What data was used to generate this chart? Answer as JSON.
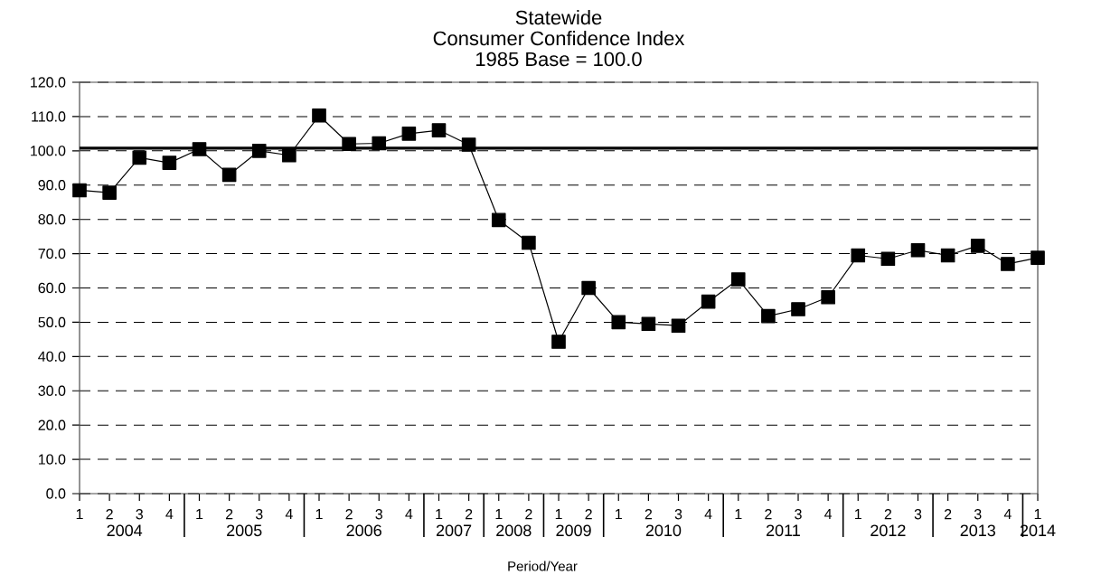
{
  "chart_data": {
    "type": "line",
    "title": "Statewide",
    "subtitle": "Consumer Confidence Index",
    "xlabel": "Period/Year",
    "annotations": [
      "1985 Base = 100.0",
      "2004",
      "2005",
      "2006",
      "2007",
      "2008",
      "2009",
      "2010",
      "2011",
      "2012",
      "2013",
      "2014"
    ],
    "categories": [
      "1",
      "2",
      "3",
      "4",
      "1",
      "2",
      "3",
      "4",
      "1",
      "2",
      "3",
      "4",
      "1",
      "2",
      "1",
      "2",
      "1",
      "2",
      "1",
      "2",
      "3",
      "4",
      "1",
      "2",
      "3",
      "4",
      "1",
      "2",
      "3",
      "2",
      "3",
      "4",
      "1"
    ],
    "series": [
      {
        "color": "#000000",
        "values": [
          88.5,
          87.8,
          98.0,
          96.5,
          100.5,
          93.0,
          100.0,
          98.7,
          110.3,
          102.0,
          102.2,
          105.0,
          106.0,
          101.8,
          79.8,
          73.2,
          44.3,
          60.0,
          50.0,
          49.5,
          49.0,
          56.0,
          62.5,
          51.8,
          53.8,
          57.3,
          69.5,
          68.5,
          71.0,
          69.5,
          72.3,
          67.0,
          68.8
        ]
      }
    ],
    "ylim": [
      0,
      120
    ],
    "yticks": [
      {
        "value": 0,
        "label": "0.0"
      },
      {
        "value": 10,
        "label": "10.0"
      },
      {
        "value": 20,
        "label": "20.0"
      },
      {
        "value": 30,
        "label": "30.0"
      },
      {
        "value": 40,
        "label": "40.0"
      },
      {
        "value": 50,
        "label": "50.0"
      },
      {
        "value": 60,
        "label": "60.0"
      },
      {
        "value": 70,
        "label": "70.0"
      },
      {
        "value": 80,
        "label": "80.0"
      },
      {
        "value": 90,
        "label": "90.0"
      },
      {
        "value": 100,
        "label": "100.0"
      },
      {
        "value": 110,
        "label": "110.0"
      },
      {
        "value": 120,
        "label": "120.0"
      }
    ],
    "ref_lines": [
      {
        "axis": "y",
        "value": 100.8,
        "color": "#000000"
      }
    ],
    "grid": "y",
    "marker": "square",
    "line_style": "solid"
  }
}
